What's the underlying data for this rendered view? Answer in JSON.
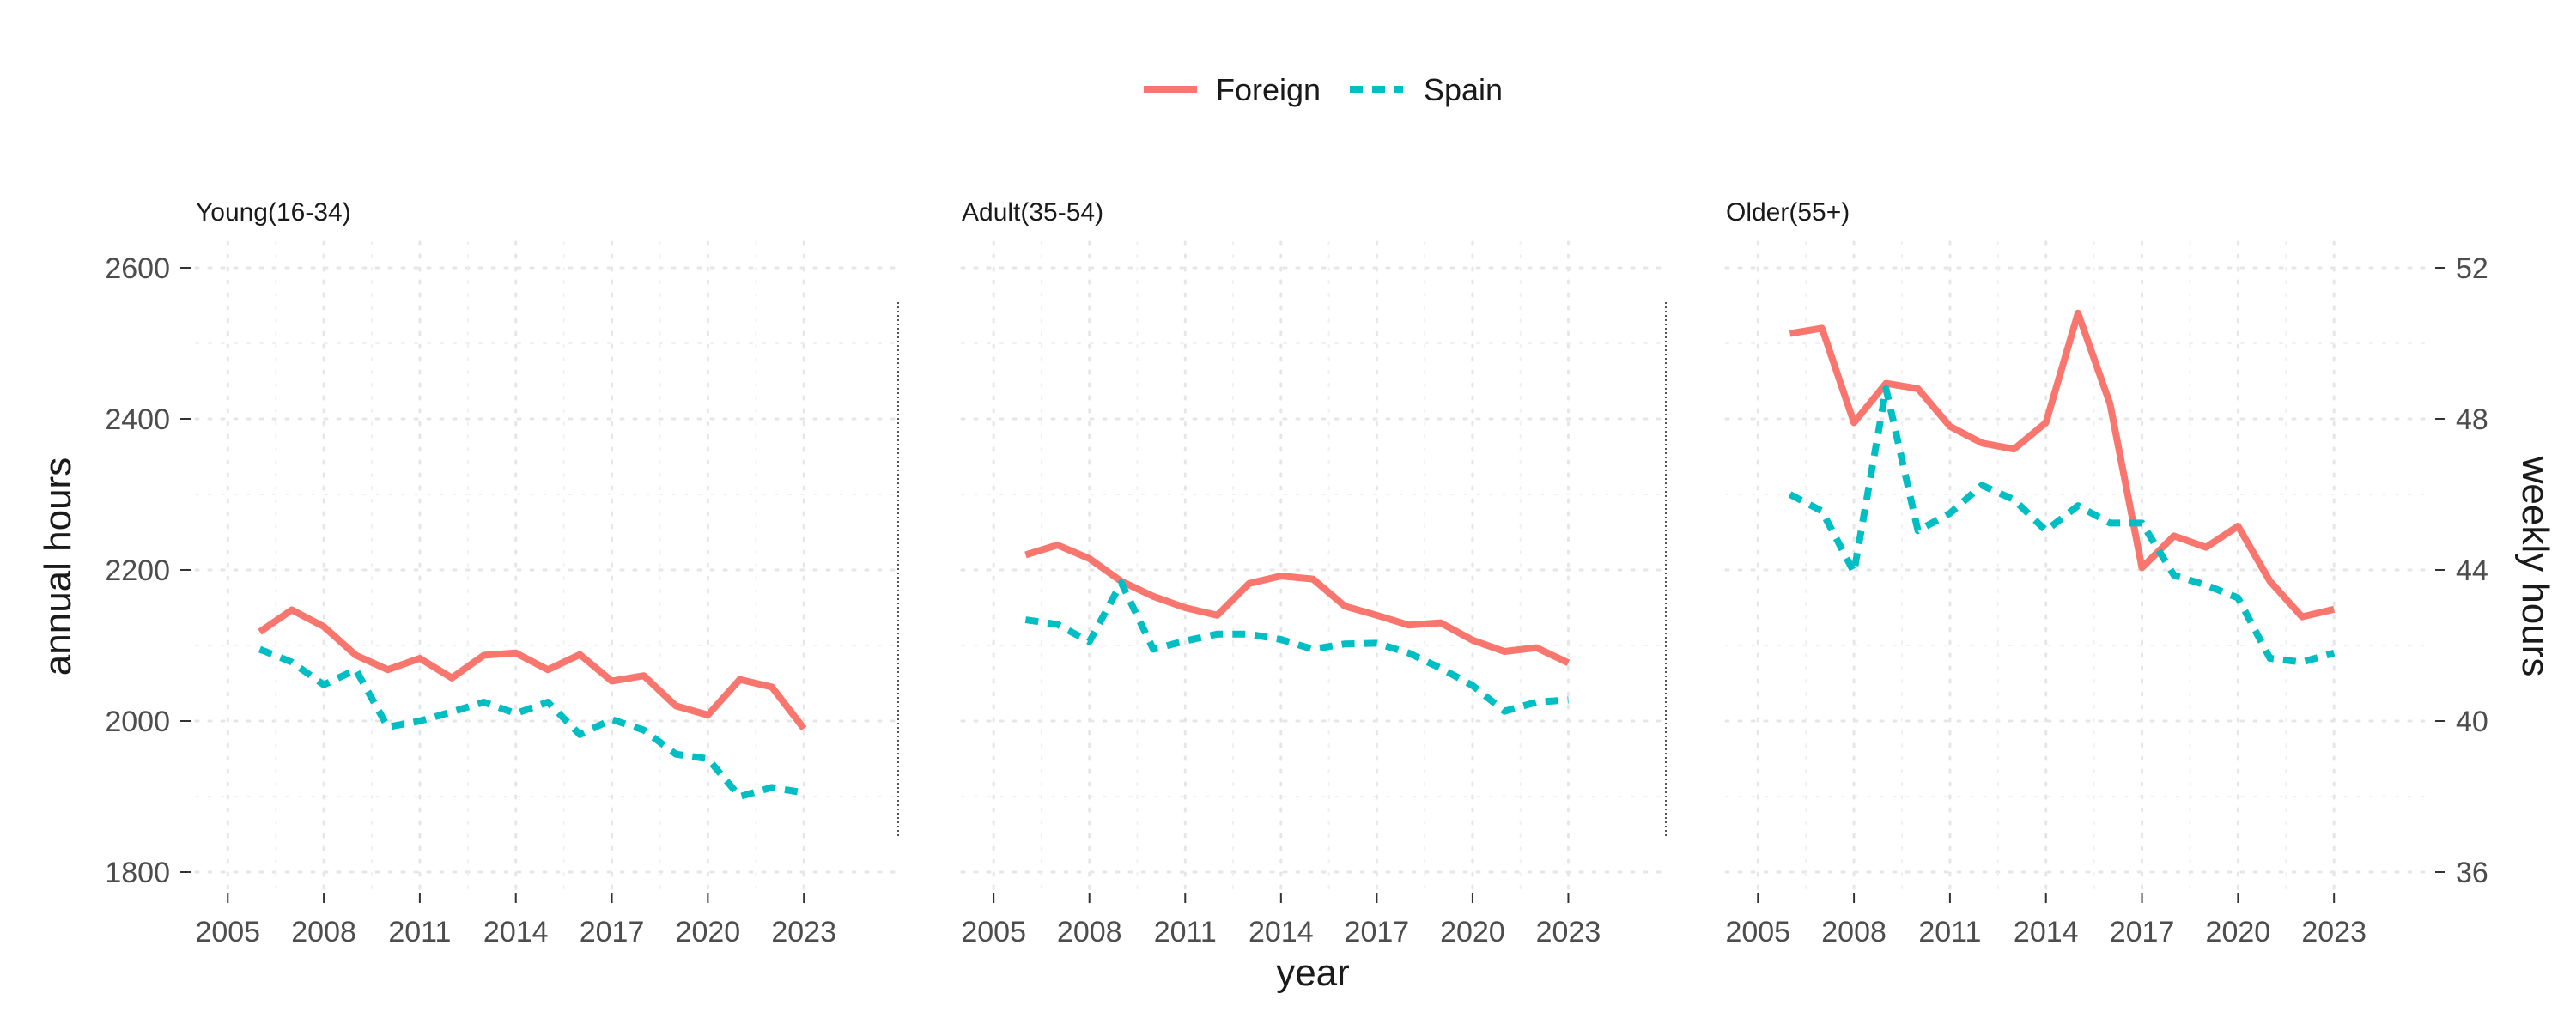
{
  "chart_data": {
    "type": "line",
    "xlabel": "year",
    "ylabel": "annual hours",
    "ylabel_right": "weekly hours",
    "x_ticks": [
      2005,
      2008,
      2011,
      2014,
      2017,
      2020,
      2023
    ],
    "xlim": [
      2004,
      2026
    ],
    "ylim": [
      1790,
      2630
    ],
    "y_ticks": [
      1800,
      2000,
      2200,
      2400,
      2600
    ],
    "y_ticks_right": [
      36,
      40,
      44,
      48,
      52
    ],
    "grid": true,
    "legend": {
      "placement": "top",
      "entries": [
        {
          "name": "Foreign",
          "color": "#F8766D",
          "style": "solid"
        },
        {
          "name": "Spain",
          "color": "#00BFC4",
          "style": "dashed"
        }
      ]
    },
    "panels": [
      {
        "title": "Young(16-34)",
        "x": [
          2006,
          2007,
          2008,
          2009,
          2010,
          2011,
          2012,
          2013,
          2014,
          2015,
          2016,
          2017,
          2018,
          2019,
          2020,
          2021,
          2022,
          2023
        ],
        "series": [
          {
            "name": "Foreign",
            "values": [
              2118,
              2147,
              2125,
              2087,
              2068,
              2083,
              2057,
              2087,
              2090,
              2068,
              2088,
              2053,
              2060,
              2020,
              2008,
              2055,
              2045,
              1990
            ]
          },
          {
            "name": "Spain",
            "values": [
              2095,
              2078,
              2048,
              2068,
              1992,
              2000,
              2012,
              2025,
              2010,
              2025,
              1982,
              2002,
              1988,
              1956,
              1950,
              1900,
              1912,
              1905
            ]
          }
        ]
      },
      {
        "title": "Adult(35-54)",
        "x": [
          2006,
          2007,
          2008,
          2009,
          2010,
          2011,
          2012,
          2013,
          2014,
          2015,
          2016,
          2017,
          2018,
          2019,
          2020,
          2021,
          2022,
          2023
        ],
        "series": [
          {
            "name": "Foreign",
            "values": [
              2220,
              2233,
              2215,
              2185,
              2165,
              2150,
              2140,
              2182,
              2192,
              2188,
              2152,
              2140,
              2127,
              2130,
              2107,
              2092,
              2097,
              2077
            ]
          },
          {
            "name": "Spain",
            "values": [
              2134,
              2128,
              2105,
              2183,
              2095,
              2106,
              2115,
              2115,
              2108,
              2095,
              2102,
              2103,
              2090,
              2070,
              2047,
              2013,
              2025,
              2028
            ]
          }
        ]
      },
      {
        "title": "Older(55+)",
        "x": [
          2006,
          2007,
          2008,
          2009,
          2010,
          2011,
          2012,
          2013,
          2014,
          2015,
          2016,
          2017,
          2018,
          2019,
          2020,
          2021,
          2022,
          2023
        ],
        "series": [
          {
            "name": "Foreign",
            "values": [
              2513,
              2520,
              2395,
              2447,
              2440,
              2390,
              2368,
              2360,
              2395,
              2540,
              2420,
              2203,
              2245,
              2230,
              2258,
              2185,
              2138,
              2148
            ]
          },
          {
            "name": "Spain",
            "values": [
              2300,
              2278,
              2197,
              2440,
              2252,
              2275,
              2312,
              2293,
              2252,
              2285,
              2262,
              2262,
              2193,
              2180,
              2163,
              2083,
              2078,
              2090
            ]
          }
        ]
      }
    ]
  }
}
